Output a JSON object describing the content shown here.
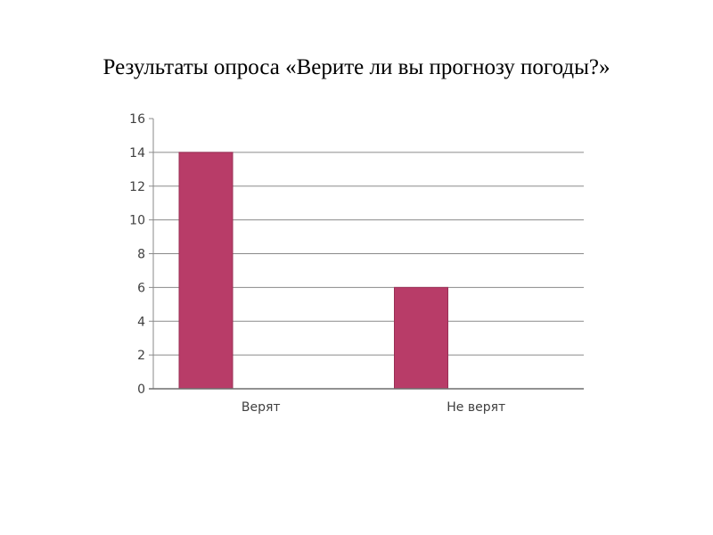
{
  "slide": {
    "title": "Результаты опроса «Верите ли вы прогнозу погоды?»"
  },
  "chart_data": {
    "type": "bar",
    "title": "Результаты опроса «Верите ли вы прогнозу погоды?»",
    "categories": [
      "Верят",
      "Не верят"
    ],
    "values": [
      14,
      6
    ],
    "xlabel": "",
    "ylabel": "",
    "ylim": [
      0,
      16
    ],
    "yticks": [
      0,
      2,
      4,
      6,
      8,
      10,
      12,
      14,
      16
    ],
    "grid": true,
    "legend": "none",
    "bar_color": "#b83c68"
  }
}
